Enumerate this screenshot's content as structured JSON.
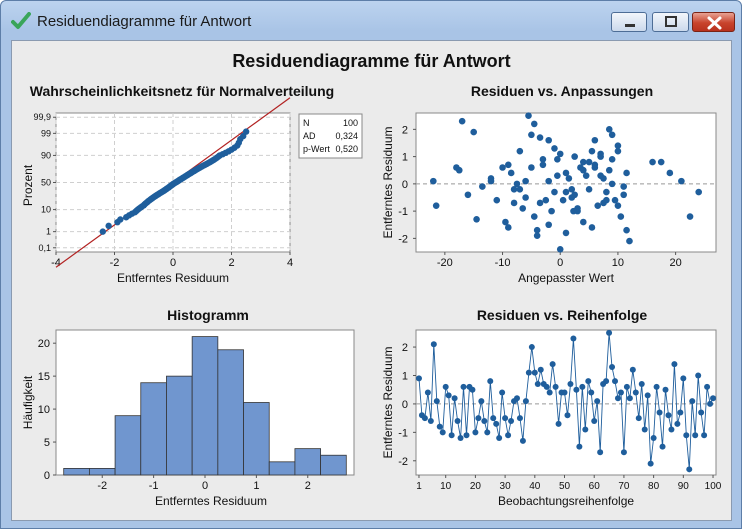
{
  "window": {
    "title": "Residuendiagramme für Antwort",
    "controls": {
      "minimize": "minimize",
      "maximize": "maximize",
      "close": "close"
    }
  },
  "colors": {
    "point": "#1f5e9c",
    "bar": "#7096cf",
    "fitline": "#b22222",
    "refline": "#999999"
  },
  "main_title": "Residuendiagramme für Antwort",
  "chart_data": [
    {
      "type": "scatter",
      "id": "normal",
      "title": "Wahrscheinlichkeitsnetz für Normalverteilung",
      "xlabel": "Entferntes Residuum",
      "ylabel": "Prozent",
      "xlim": [
        -4,
        4
      ],
      "xticks": [
        -4,
        -2,
        0,
        2,
        4
      ],
      "ytick_labels": [
        "0,1",
        "1",
        "10",
        "50",
        "90",
        "99",
        "99,9"
      ],
      "ytick_values": [
        0.1,
        1,
        10,
        50,
        90,
        99,
        99.9
      ],
      "grid": true,
      "stats_box": {
        "rows": [
          [
            "N",
            "100"
          ],
          [
            "AD",
            "0,324"
          ],
          [
            "p-Wert",
            "0,520"
          ]
        ]
      },
      "fit_line": [
        [
          -4,
          0.003
        ],
        [
          4,
          99.997
        ]
      ],
      "x": [
        -2.4,
        -2.2,
        -1.9,
        -1.8,
        -1.6,
        -1.5,
        -1.4,
        -1.3,
        -1.25,
        -1.2,
        -1.15,
        -1.1,
        -1.05,
        -1.0,
        -0.97,
        -0.94,
        -0.9,
        -0.87,
        -0.84,
        -0.8,
        -0.77,
        -0.74,
        -0.7,
        -0.67,
        -0.64,
        -0.6,
        -0.57,
        -0.54,
        -0.5,
        -0.47,
        -0.44,
        -0.4,
        -0.37,
        -0.34,
        -0.3,
        -0.28,
        -0.25,
        -0.22,
        -0.2,
        -0.17,
        -0.14,
        -0.12,
        -0.1,
        -0.07,
        -0.04,
        -0.02,
        0.0,
        0.03,
        0.06,
        0.09,
        0.12,
        0.15,
        0.18,
        0.2,
        0.23,
        0.26,
        0.29,
        0.32,
        0.35,
        0.38,
        0.41,
        0.44,
        0.47,
        0.5,
        0.53,
        0.56,
        0.6,
        0.63,
        0.66,
        0.7,
        0.73,
        0.76,
        0.8,
        0.84,
        0.88,
        0.92,
        0.96,
        1.0,
        1.05,
        1.1,
        1.15,
        1.2,
        1.25,
        1.3,
        1.35,
        1.4,
        1.45,
        1.5,
        1.55,
        1.6,
        1.7,
        1.8,
        1.9,
        2.0,
        2.1,
        2.2,
        2.25,
        2.3,
        2.4,
        2.5
      ],
      "y": [
        1.0,
        2.0,
        3.0,
        4.0,
        5.0,
        6.0,
        7.0,
        8.0,
        9.0,
        10.0,
        11.0,
        12.0,
        13.0,
        14.0,
        15.0,
        16.0,
        17.0,
        18.0,
        19.0,
        20.0,
        21.0,
        22.0,
        23.0,
        24.0,
        25.0,
        26.0,
        27.0,
        28.0,
        29.0,
        30.0,
        31.0,
        32.0,
        33.0,
        34.0,
        35.0,
        36.0,
        37.0,
        38.0,
        39.0,
        40.0,
        41.0,
        42.0,
        43.0,
        44.0,
        45.0,
        46.0,
        47.0,
        48.0,
        49.0,
        50.0,
        51.0,
        52.0,
        53.0,
        54.0,
        55.0,
        56.0,
        57.0,
        58.0,
        59.0,
        60.0,
        61.0,
        62.0,
        63.0,
        64.0,
        65.0,
        66.0,
        67.0,
        68.0,
        69.0,
        70.0,
        71.0,
        72.0,
        73.0,
        74.0,
        75.0,
        76.0,
        77.0,
        78.0,
        79.0,
        80.0,
        81.0,
        82.0,
        83.0,
        84.0,
        85.0,
        86.0,
        87.0,
        88.0,
        89.0,
        90.0,
        91.0,
        92.0,
        93.0,
        94.0,
        95.0,
        96.0,
        97.0,
        98.0,
        98.6,
        99.2
      ]
    },
    {
      "type": "scatter",
      "id": "fits",
      "title": "Residuen vs. Anpassungen",
      "xlabel": "Angepasster Wert",
      "ylabel": "Entferntes Residuum",
      "xlim": [
        -25,
        27
      ],
      "ylim": [
        -2.5,
        2.6
      ],
      "xticks": [
        -20,
        -10,
        0,
        10,
        20
      ],
      "yticks": [
        -2,
        -1,
        0,
        1,
        2
      ],
      "reference_y": 0,
      "x": [
        -22,
        -21.5,
        -18,
        -17.5,
        -17,
        -16,
        -14.5,
        -13.5,
        -12,
        -11,
        -10,
        -9.5,
        -9,
        -8.5,
        -8,
        -7.5,
        -7,
        -6.5,
        -6,
        -5.5,
        -5,
        -4.5,
        -4,
        -3.5,
        -3,
        -2.5,
        -2,
        -1.5,
        -1,
        -0.5,
        0,
        0.5,
        1,
        1.5,
        2,
        2.5,
        3,
        3.5,
        4,
        4.5,
        5,
        5.5,
        6,
        6.5,
        7,
        7.5,
        8,
        8.5,
        9,
        9.5,
        10,
        10.5,
        11,
        11.5,
        12,
        16,
        17.5,
        19,
        21,
        22.5,
        24,
        -5,
        -3.5,
        -2,
        -0.5,
        1,
        2.5,
        4,
        5.5,
        7,
        8.5,
        10,
        11.5,
        -12,
        -7,
        -4,
        -1,
        3,
        6,
        9,
        -9,
        0,
        2,
        5,
        8,
        10,
        -6,
        -3,
        1,
        4,
        7,
        -15,
        -8,
        -2,
        6,
        9,
        11,
        -4.5,
        2.3,
        7.5
      ],
      "y": [
        0.1,
        -0.8,
        0.6,
        0.5,
        2.3,
        -0.4,
        -1.3,
        -0.1,
        0.2,
        -0.6,
        0.6,
        -1.4,
        0.7,
        0.4,
        -0.2,
        0.0,
        1.2,
        -0.9,
        0.1,
        2.5,
        0.6,
        -1.2,
        -1.7,
        1.7,
        0.9,
        -0.6,
        1.6,
        -1.0,
        -0.3,
        0.3,
        1.1,
        -0.6,
        0.4,
        0.2,
        -0.5,
        1.0,
        -0.9,
        0.6,
        0.8,
        0.3,
        -0.2,
        1.2,
        0.7,
        -0.8,
        1.0,
        0.2,
        -0.3,
        0.5,
        0.0,
        -0.6,
        1.2,
        -1.2,
        -0.4,
        0.4,
        -2.1,
        0.8,
        0.8,
        0.4,
        0.1,
        -1.2,
        -0.3,
        1.8,
        -0.7,
        0.1,
        0.9,
        -1.8,
        -0.4,
        0.5,
        -1.6,
        1.1,
        2.0,
        -0.8,
        -1.7,
        0.1,
        -0.2,
        -1.9,
        1.3,
        -1.0,
        0.6,
        1.8,
        -1.6,
        -2.4,
        -0.2,
        0.8,
        -0.6,
        1.4,
        -0.5,
        0.7,
        -0.3,
        -1.4,
        0.3,
        1.9,
        -0.7,
        -1.5,
        1.6,
        0.9,
        -0.1,
        2.2,
        -1.0,
        -0.7
      ]
    },
    {
      "type": "bar",
      "id": "histogram",
      "title": "Histogramm",
      "xlabel": "Entferntes Residuum",
      "ylabel": "Häufigkeit",
      "bin_edges": [
        -2.75,
        -2.25,
        -1.75,
        -1.25,
        -0.75,
        -0.25,
        0.25,
        0.75,
        1.25,
        1.75,
        2.25,
        2.75
      ],
      "values": [
        1,
        1,
        9,
        14,
        15,
        21,
        19,
        11,
        2,
        4,
        3
      ],
      "xlim": [
        -2.9,
        2.9
      ],
      "ylim": [
        0,
        22
      ],
      "xticks": [
        -2,
        -1,
        0,
        1,
        2
      ],
      "yticks": [
        0,
        5,
        10,
        15,
        20
      ]
    },
    {
      "type": "line",
      "id": "order",
      "title": "Residuen vs. Reihenfolge",
      "xlabel": "Beobachtungsreihenfolge",
      "ylabel": "Entferntes Residuum",
      "xlim": [
        0,
        101
      ],
      "ylim": [
        -2.5,
        2.6
      ],
      "xticks": [
        1,
        10,
        20,
        30,
        40,
        50,
        60,
        70,
        80,
        90,
        100
      ],
      "yticks": [
        -2,
        -1,
        0,
        1,
        2
      ],
      "reference_y": 0,
      "y": [
        0.9,
        -0.4,
        -0.5,
        0.4,
        -0.6,
        2.1,
        0.1,
        -0.8,
        -1.0,
        0.6,
        0.3,
        -1.1,
        0.2,
        -0.6,
        -1.2,
        0.6,
        -1.1,
        0.6,
        0.5,
        -1.0,
        -0.5,
        0.1,
        -0.6,
        -1.0,
        0.8,
        -0.5,
        -0.7,
        -1.2,
        0.4,
        -0.5,
        -1.1,
        -0.6,
        0.1,
        0.2,
        -0.5,
        -1.3,
        0.1,
        1.1,
        2.0,
        1.1,
        0.7,
        1.2,
        0.7,
        0.6,
        0.4,
        1.4,
        0.6,
        -0.7,
        0.4,
        0.4,
        -0.4,
        0.7,
        2.3,
        0.5,
        -1.5,
        0.6,
        -0.9,
        0.8,
        0.4,
        -0.6,
        0.1,
        -1.7,
        0.7,
        0.8,
        2.5,
        1.3,
        0.8,
        0.2,
        0.4,
        -1.7,
        0.6,
        0.2,
        1.2,
        0.4,
        -0.5,
        0.7,
        -0.9,
        0.3,
        -2.1,
        -1.2,
        0.6,
        -0.3,
        -1.5,
        0.5,
        -0.4,
        -0.9,
        1.4,
        -0.7,
        -0.3,
        0.9,
        -1.1,
        -2.3,
        0.1,
        -1.1,
        1.0,
        -0.3,
        -1.1,
        0.6,
        0.0,
        0.2
      ]
    }
  ]
}
